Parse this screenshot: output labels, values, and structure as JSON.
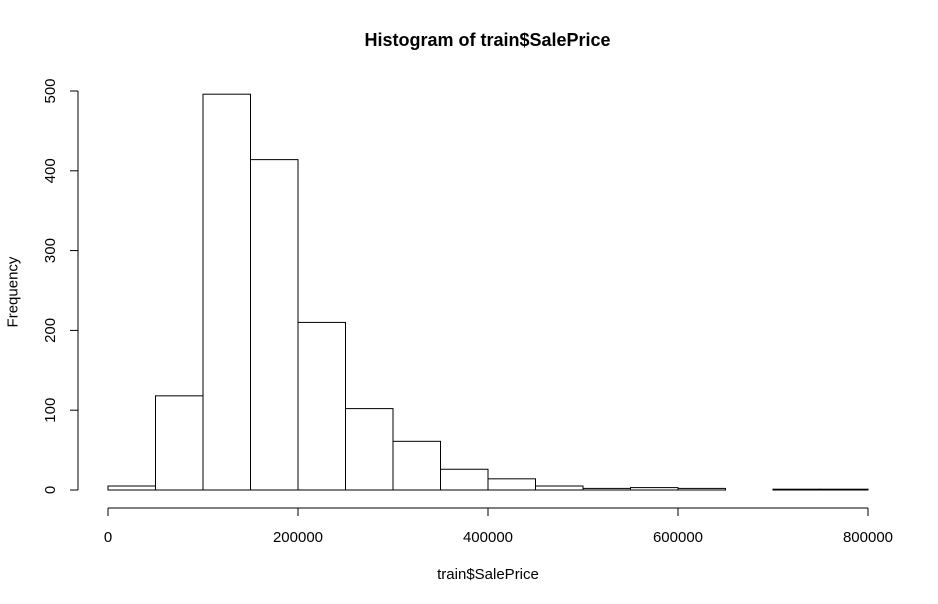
{
  "chart_data": {
    "type": "bar",
    "title": "Histogram of train$SalePrice",
    "xlabel": "train$SalePrice",
    "ylabel": "Frequency",
    "bin_edges": [
      0,
      50000,
      100000,
      150000,
      200000,
      250000,
      300000,
      350000,
      400000,
      450000,
      500000,
      550000,
      600000,
      650000,
      700000,
      750000,
      800000
    ],
    "values": [
      5,
      118,
      496,
      414,
      210,
      102,
      61,
      26,
      14,
      5,
      2,
      3,
      2,
      0,
      1,
      1
    ],
    "xlim": [
      0,
      800000
    ],
    "ylim": [
      0,
      500
    ],
    "x_ticks": [
      0,
      200000,
      400000,
      600000,
      800000
    ],
    "x_tick_labels": [
      "0",
      "200000",
      "400000",
      "600000",
      "800000"
    ],
    "y_ticks": [
      0,
      100,
      200,
      300,
      400,
      500
    ],
    "y_tick_labels": [
      "0",
      "100",
      "200",
      "300",
      "400",
      "500"
    ],
    "grid": false,
    "bar_fill": "#ffffff",
    "bar_stroke": "#000000"
  }
}
